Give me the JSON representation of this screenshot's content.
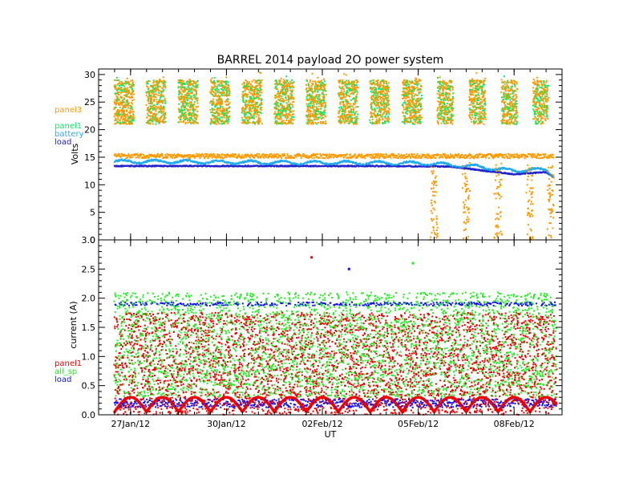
{
  "title": "BARREL 2014 payload 2O power system",
  "xlabel": "UT",
  "colors": {
    "panel3": "#ff9900",
    "panel1_top": "#00ee66",
    "battery": "#22aaee",
    "load_top": "#2222cc",
    "panel1_bottom": "#ee0000",
    "all_sp": "#22ee22",
    "load_bottom": "#1111ee"
  },
  "chart_data": [
    {
      "type": "scatter",
      "ylabel": "Volts",
      "xlim": [
        "2014-01-26T00:00",
        "2014-02-09T12:00"
      ],
      "ylim": [
        0,
        31
      ],
      "yticks": [
        0,
        5,
        10,
        15,
        20,
        25,
        30
      ],
      "xticks": [
        "27Jan/12",
        "30Jan/12",
        "02Feb/12",
        "05Feb/12",
        "08Feb/12"
      ],
      "legend_position": "left",
      "series": [
        {
          "name": "panel3",
          "description_points": [
            [
              "2014-01-26T12:00",
              25
            ],
            [
              "2014-01-27T12:00",
              25
            ],
            [
              "2014-01-28T12:00",
              25
            ],
            [
              "2014-01-29T12:00",
              25
            ],
            [
              "2014-01-30T12:00",
              25
            ],
            [
              "2014-01-31T12:00",
              25
            ],
            [
              "2014-02-01T12:00",
              25
            ],
            [
              "2014-02-02T12:00",
              25
            ],
            [
              "2014-02-03T12:00",
              25
            ],
            [
              "2014-02-04T12:00",
              25
            ],
            [
              "2014-02-05T12:00",
              25
            ],
            [
              "2014-02-06T12:00",
              25
            ],
            [
              "2014-02-07T12:00",
              25
            ],
            [
              "2014-02-08T12:00",
              25
            ],
            [
              "2014-02-09T06:00",
              25
            ]
          ],
          "band_range": [
            21,
            29
          ],
          "night_level": 15.2
        },
        {
          "name": "panel1",
          "band_range": [
            21,
            29.5
          ]
        },
        {
          "name": "battery",
          "x": [
            "2014-01-26T12:00",
            "2014-01-28T00:00",
            "2014-01-30T00:00",
            "2014-02-01T00:00",
            "2014-02-03T00:00",
            "2014-02-05T00:00",
            "2014-02-06T00:00",
            "2014-02-07T00:00",
            "2014-02-08T00:00",
            "2014-02-08T12:00",
            "2014-02-09T00:00",
            "2014-02-09T08:00"
          ],
          "y": [
            14.2,
            14.2,
            14.1,
            14.0,
            14.0,
            13.9,
            13.6,
            13.2,
            12.5,
            12.8,
            12.6,
            11.2
          ]
        },
        {
          "name": "load",
          "x": [
            "2014-01-26T12:00",
            "2014-01-29T00:00",
            "2014-02-01T00:00",
            "2014-02-04T00:00",
            "2014-02-06T00:00",
            "2014-02-07T00:00",
            "2014-02-08T00:00",
            "2014-02-09T00:00",
            "2014-02-09T08:00"
          ],
          "y": [
            13.4,
            13.4,
            13.4,
            13.4,
            13.3,
            12.6,
            11.9,
            12.3,
            11.0
          ]
        }
      ]
    },
    {
      "type": "scatter",
      "ylabel": "current (A)",
      "xlim": [
        "2014-01-26T00:00",
        "2014-02-09T12:00"
      ],
      "ylim": [
        0,
        3.0
      ],
      "yticks": [
        0.0,
        0.5,
        1.0,
        1.5,
        2.0,
        2.5,
        3.0
      ],
      "xticks": [
        "27Jan/12",
        "30Jan/12",
        "02Feb/12",
        "05Feb/12",
        "08Feb/12"
      ],
      "legend_position": "left",
      "series": [
        {
          "name": "panel1",
          "band_range": [
            0.0,
            1.8
          ],
          "outliers": [
            [
              "2014-02-01T16:00",
              2.7
            ]
          ]
        },
        {
          "name": "all_sp",
          "band_range": [
            0.3,
            2.1
          ],
          "outliers": [
            [
              "2014-02-04T20:00",
              2.6
            ]
          ]
        },
        {
          "name": "load",
          "baseline": 0.2,
          "upper_level": 1.9,
          "outliers": [
            [
              "2014-02-02T20:00",
              2.5
            ]
          ]
        }
      ]
    }
  ]
}
